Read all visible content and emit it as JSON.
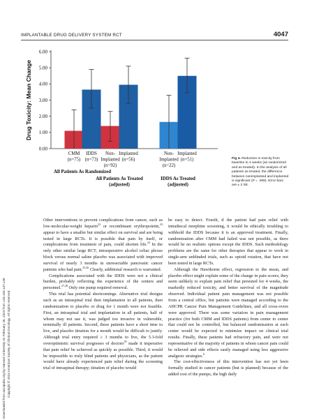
{
  "header": {
    "running_title": "IMPLANTABLE DRUG DELIVERY SYSTEM RCT",
    "page_number": "4047"
  },
  "side_note": {
    "line1": "Downloaded from ascopubs.org by Harvard University on February 26, 2024 from 128.103.147.149",
    "line2": "Copyright © 2024 American Society of Clinical Oncology. All rights reserved."
  },
  "figure": {
    "caption_bold": "Fig 4.",
    "caption_text": "Reduction in toxicity from baseline to 4 weeks (as randomized and as treated). In the analysis of all patients as treated, the difference between nonimplanted and implanted is significant (P = .008). Error bars are ± 2 SE."
  },
  "chart_data": {
    "type": "bar",
    "ylabel": "Drug Toxicity: Mean Change",
    "ylim": [
      0,
      6
    ],
    "yticks": [
      "0.00",
      "1.00",
      "2.00",
      "3.00",
      "4.00",
      "5.00",
      "6.00"
    ],
    "error_bar": "± 2 SE",
    "colors": {
      "cmm": "#d0333f",
      "idds": "#1f5fa3",
      "nonimplanted_treated": "#2e86d1",
      "implanted_treated": "#1a5ba6",
      "error": "#333333"
    },
    "groups": [
      {
        "name": "All Patients As Randomized",
        "bars": [
          {
            "label": "CMM",
            "n": "(n=75)",
            "value": 1.1,
            "low": 0.0,
            "high": 2.4,
            "color": "#d0333f"
          },
          {
            "label": "IDDS",
            "n": "(n=73)",
            "value": 3.65,
            "low": 2.5,
            "high": 4.9,
            "color": "#1f5fa3"
          }
        ]
      },
      {
        "name": "All Patients As Treated",
        "name_line2": "(adjusted)",
        "bars": [
          {
            "label": "Non-\nImplanted",
            "n": "(n=92)",
            "value": 1.4,
            "low": 0.45,
            "high": 2.3,
            "color": "#d0333f"
          },
          {
            "label": "Implanted",
            "n": "(n=56)",
            "value": 3.95,
            "low": 2.8,
            "high": 5.1,
            "color": "#1f5fa3"
          }
        ]
      },
      {
        "name": "IDDS As Treated",
        "name_line2": "(adjusted)",
        "bars": [
          {
            "label": "Non-\nImplanted",
            "n": "(n=22)",
            "value": 1.65,
            "low": 0.0,
            "high": 3.3,
            "color": "#2e86d1"
          },
          {
            "label": "Implanted",
            "n": "(n=51)",
            "value": 4.5,
            "low": 3.45,
            "high": 5.6,
            "color": "#1a5ba6"
          }
        ]
      }
    ]
  },
  "body": {
    "left_col": {
      "p1": "Other interventions to prevent complications from cancer, such as low-molecular-weight heparin",
      "p1_ref1": "22",
      "p1b": " or recombinant erythropoietin,",
      "p1_ref2": "23",
      "p1c": " appear to have a smaller but similar effect on survival and are being tested in large RCTs. It is possible that pain by itself, or complications from treatment of pain, could shorten life.",
      "p1_ref3": "24",
      "p1d": " In the only other similar large RCT, intraoperative alcohol celiac plexus block versus normal saline placebo was associated with improved survival of nearly 3 months in unresectable pancreatic cancer patients who had pain.",
      "p1_ref4": "25,26",
      "p1e": " Clearly, additional research is warranted.",
      "p2": "Complications associated with the IDDS were not a clinical burden, probably reflecting the experience of the centers and personnel.",
      "p2_ref": "27,28",
      "p2b": " Only one pump required removal.",
      "p3": "This trial has potential shortcomings. Alternative trial designs such as an intraspinal trial then implantation in all patients, then randomization to placebo or drug for 1 month were not feasible. First, an intraspinal trial and implantation in all patients, half of whom may not use it, was judged too invasive in vulnerable, terminally ill patients. Second, these patients have a short time to live, and placebo titration for a month would be difficult to justify. Although trial entry required ≥ 3 months to live, the 5.3-fold overoptimistic survival prognoses of doctors",
      "p3_ref": "29",
      "p3b": " made it imperative that pain relief be achieved as quickly as possible. Third, it would be impossible to truly blind patients and physicians, as the patient would have already experienced pain relief during the screening trial of intraspinal therapy; titration of placebo would"
    },
    "right_col": {
      "p1": "be easy to detect. Fourth, if the patient had pain relief with intrathecal morphine screening, it would be ethically troubling to withhold the IDDS because it is an approved treatment. Finally, randomization after CMM had failed was not possible, as there would be no realistic options except the IDDS. Such methodology problems are the same for other therapies that appear to work in single-arm unblinded trials, such as opioid rotation, that have not been tested in large RCTs.",
      "p2": "Although the Hawthorne effect, regression to the mean, and placebo effect might explain some of the change in pain scores, they seem unlikely to explain pain relief that persisted for 4 weeks, the markedly reduced toxicity, and better survival of the magnitude observed. Individual patient pain management was not possible from a central office, but patients were managed according to the AHCPR Cancer Pain Management Guidelines, and all cross-overs were approved. There was some variation in pain management practice (for both CMM and IDDS patients) from center to center that could not be controlled, but balanced randomization at each center would be expected to minimize impact on clinical trial results. Finally, these patients had refractory pain, and were not representative of the majority of patients in whom cancer pain could be relieved and side effects easily managed using less aggressive analgesic strategies.",
      "p2_ref": "6",
      "p3": "The cost-effectiveness of this intervention has not yet been formally studied in cancer patients (but is planned) because of the added cost of the pumps, the high daily"
    }
  }
}
